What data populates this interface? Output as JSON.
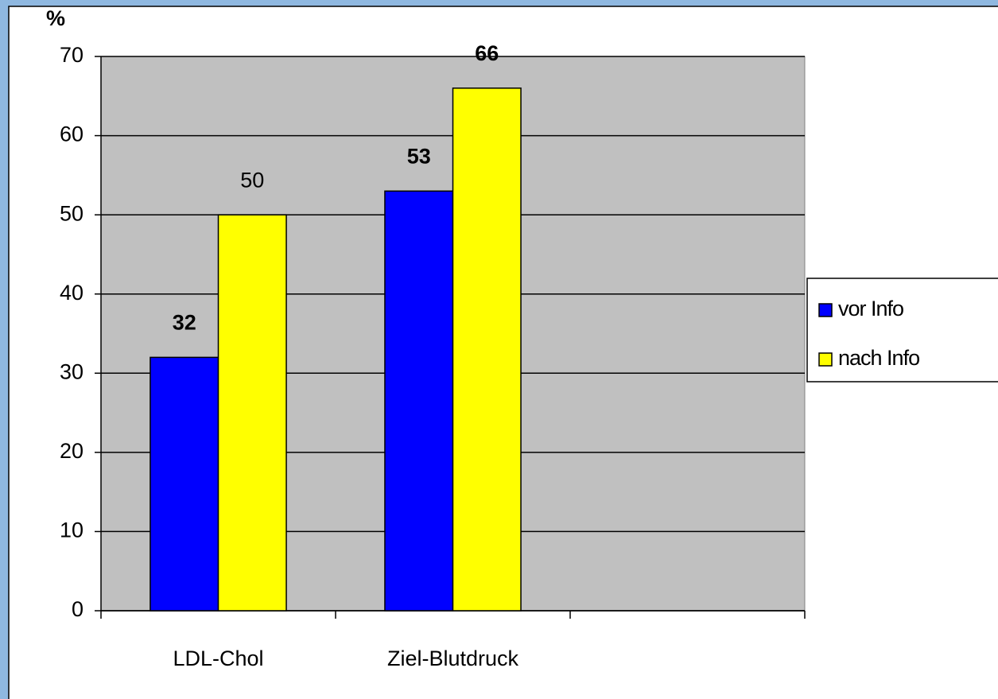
{
  "chart_data": {
    "type": "bar",
    "y_label": "%",
    "categories": [
      "LDL-Chol",
      "Ziel-Blutdruck",
      null
    ],
    "series": [
      {
        "name": "vor Info",
        "color": "#0000ff",
        "values": [
          32,
          53,
          null
        ]
      },
      {
        "name": "nach Info",
        "color": "#ffff00",
        "values": [
          50,
          66,
          null
        ]
      }
    ],
    "ylim": [
      0,
      70
    ],
    "yticks": [
      0,
      10,
      20,
      30,
      40,
      50,
      60,
      70
    ],
    "grid": true,
    "legend": "right",
    "plot_background": "#c0c0c0"
  }
}
